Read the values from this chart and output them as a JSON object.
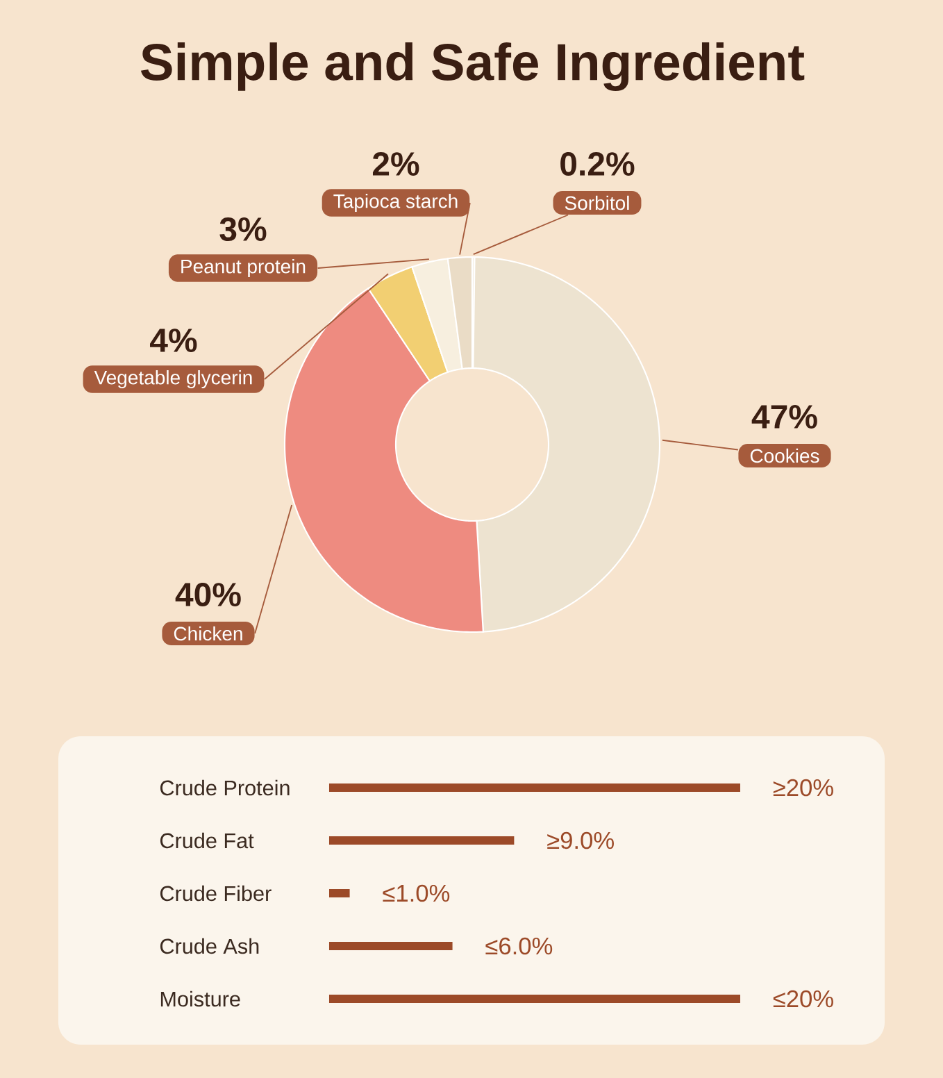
{
  "chart_data": [
    {
      "type": "donut",
      "title": "Simple and Safe Ingredient",
      "categories": [
        "Sorbitol",
        "Cookies",
        "Chicken",
        "Vegetable glycerin",
        "Peanut protein",
        "Tapioca starch"
      ],
      "values": [
        0.2,
        47,
        40,
        4,
        3,
        2
      ],
      "value_labels": [
        "0.2%",
        "47%",
        "40%",
        "4%",
        "3%",
        "2%"
      ],
      "colors": [
        "#f4ece0",
        "#ede3d0",
        "#ee8b80",
        "#f2cf72",
        "#f7efdf",
        "#eadcc6"
      ]
    },
    {
      "type": "bar",
      "orientation": "horizontal",
      "categories": [
        "Crude Protein",
        "Crude Fat",
        "Crude Fiber",
        "Crude Ash",
        "Moisture"
      ],
      "values": [
        20,
        9.0,
        1.0,
        6.0,
        20
      ],
      "value_labels": [
        "≥20%",
        "≥9.0%",
        "≤1.0%",
        "≤6.0%",
        "≤20%"
      ],
      "color": "#9c4a28",
      "tick_labels": "y"
    }
  ]
}
